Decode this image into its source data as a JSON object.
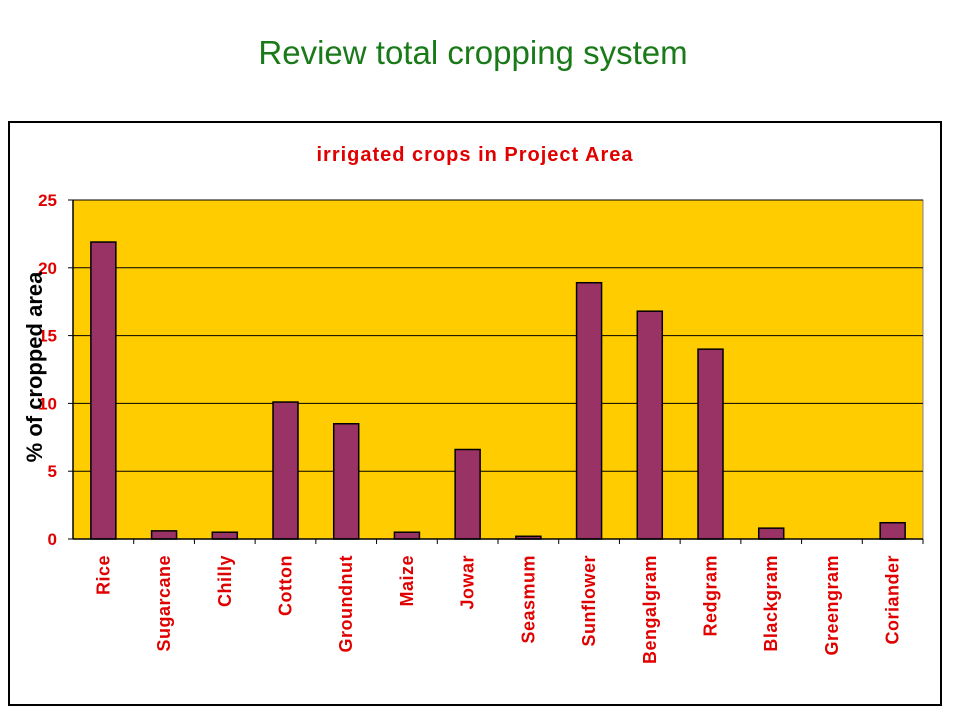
{
  "slide": {
    "title": "Review total cropping system"
  },
  "chart_data": {
    "type": "bar",
    "title": "irrigated crops in Project Area",
    "xlabel": "",
    "ylabel": "% of cropped area",
    "categories": [
      "Rice",
      "Sugarcane",
      "Chilly",
      "Cotton",
      "Groundnut",
      "Maize",
      "Jowar",
      "Seasmum",
      "Sunflower",
      "Bengalgram",
      "Redgram",
      "Blackgram",
      "Greengram",
      "Coriander"
    ],
    "values": [
      21.9,
      0.6,
      0.5,
      10.1,
      8.5,
      0.5,
      6.6,
      0.2,
      18.9,
      16.8,
      14.0,
      0.8,
      0.0,
      1.2
    ],
    "ylim": [
      0,
      25
    ],
    "yticks": [
      "0",
      "5",
      "10",
      "15",
      "20",
      "25"
    ],
    "grid": true,
    "colors": {
      "bar": "#993366",
      "plot_bg": "#ffcc00",
      "text": "#e00000"
    }
  }
}
